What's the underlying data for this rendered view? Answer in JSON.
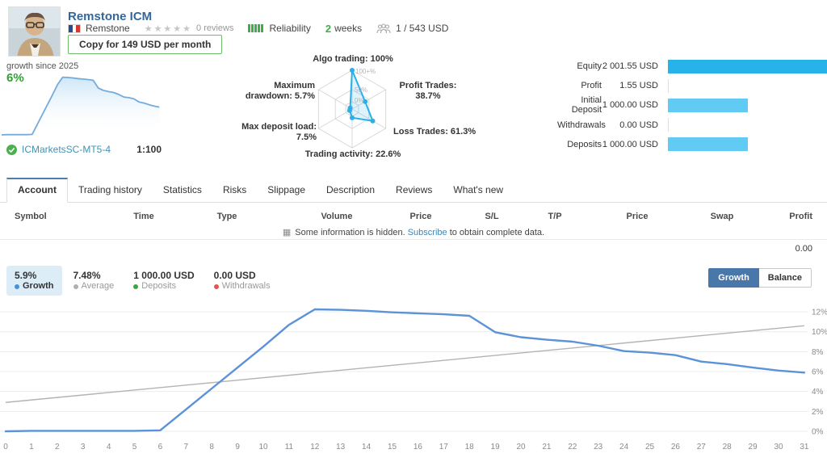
{
  "header": {
    "title": "Remstone ICM",
    "author": "Remstone",
    "stars": "★★★★★",
    "reviews": "0 reviews",
    "reliability_label": "Reliability",
    "weeks_value": "2",
    "weeks_label": "weeks",
    "subscribers": "1 / 543 USD",
    "copy_button": "Copy for 149 USD per month"
  },
  "growth_panel": {
    "caption": "growth since 2025",
    "value": "6%",
    "broker": "ICMarketsSC-MT5-4",
    "leverage": "1:100"
  },
  "radar": {
    "ring_labels": [
      "100+%",
      "50%",
      "0%"
    ],
    "axes": [
      {
        "label_lines": [
          "Algo trading: 100%"
        ],
        "value": 100
      },
      {
        "label_lines": [
          "Profit Trades:",
          "38.7%"
        ],
        "value": 38.7
      },
      {
        "label_lines": [
          "Loss Trades: 61.3%"
        ],
        "value": 61.3
      },
      {
        "label_lines": [
          "Trading activity: 22.6%"
        ],
        "value": 22.6
      },
      {
        "label_lines": [
          "Max deposit load:",
          "7.5%"
        ],
        "value": 7.5
      },
      {
        "label_lines": [
          "Maximum",
          "drawdown: 5.7%"
        ],
        "value": 5.7
      }
    ],
    "accent": "#29b0e8"
  },
  "account_stats": {
    "rows": [
      {
        "label": "Equity",
        "value": "2 001.55 USD",
        "pct": 100,
        "color": "#27b2ea"
      },
      {
        "label": "Profit",
        "value": "1.55 USD",
        "pct": 0.5,
        "color": "#bfe8fa"
      },
      {
        "label": "Initial Deposit",
        "value": "1 000.00 USD",
        "pct": 50,
        "color": "#61cbf3"
      },
      {
        "label": "Withdrawals",
        "value": "0.00 USD",
        "pct": 0.5,
        "color": "#bfe8fa"
      },
      {
        "label": "Deposits",
        "value": "1 000.00 USD",
        "pct": 50,
        "color": "#61cbf3"
      }
    ]
  },
  "tabs": [
    {
      "label": "Account",
      "active": true
    },
    {
      "label": "Trading history",
      "active": false
    },
    {
      "label": "Statistics",
      "active": false
    },
    {
      "label": "Risks",
      "active": false
    },
    {
      "label": "Slippage",
      "active": false
    },
    {
      "label": "Description",
      "active": false
    },
    {
      "label": "Reviews",
      "active": false
    },
    {
      "label": "What's new",
      "active": false
    }
  ],
  "table": {
    "columns": [
      "Symbol",
      "Time",
      "Type",
      "Volume",
      "Price",
      "S/L",
      "T/P",
      "Price",
      "Swap",
      "Profit"
    ],
    "notice_icon": "▦",
    "notice_text": "Some information is hidden.",
    "notice_link": "Subscribe",
    "notice_rest": "to obtain complete data.",
    "total_profit": "0.00"
  },
  "summary": [
    {
      "value": "5.9%",
      "label": "Growth",
      "dot": "#4a90d9",
      "active": true
    },
    {
      "value": "7.48%",
      "label": "Average",
      "dot": "#b0b0b0",
      "active": false
    },
    {
      "value": "1 000.00 USD",
      "label": "Deposits",
      "dot": "#3da53f",
      "active": false
    },
    {
      "value": "0.00 USD",
      "label": "Withdrawals",
      "dot": "#e2574c",
      "active": false
    }
  ],
  "view_buttons": [
    {
      "label": "Growth",
      "active": true
    },
    {
      "label": "Balance",
      "active": false
    }
  ],
  "chart_data": {
    "type": "line",
    "title": "Growth since 2025, %",
    "x": [
      0,
      1,
      2,
      3,
      4,
      5,
      6,
      7,
      8,
      9,
      10,
      11,
      12,
      13,
      14,
      15,
      16,
      17,
      18,
      19,
      20,
      21,
      22,
      23,
      24,
      25,
      26,
      27,
      28,
      29,
      30,
      31
    ],
    "series": [
      {
        "name": "Growth",
        "color": "#5b92d8",
        "values": [
          0,
          0.05,
          0.05,
          0.05,
          0.05,
          0.05,
          0.1,
          2.2,
          4.3,
          6.4,
          8.5,
          10.7,
          12.25,
          12.2,
          12.1,
          11.95,
          11.85,
          11.75,
          11.6,
          9.95,
          9.45,
          9.2,
          9.0,
          8.6,
          8.05,
          7.9,
          7.65,
          7.0,
          6.75,
          6.4,
          6.1,
          5.9
        ]
      },
      {
        "name": "Trend",
        "color": "#b3b3b3",
        "values_endpoints": [
          2.9,
          10.6
        ]
      }
    ],
    "ylim": [
      0,
      13
    ],
    "yticks": [
      0,
      2,
      4,
      6,
      8,
      10,
      12
    ],
    "ytick_suffix": "%",
    "grid": true,
    "legend_position": "none"
  }
}
